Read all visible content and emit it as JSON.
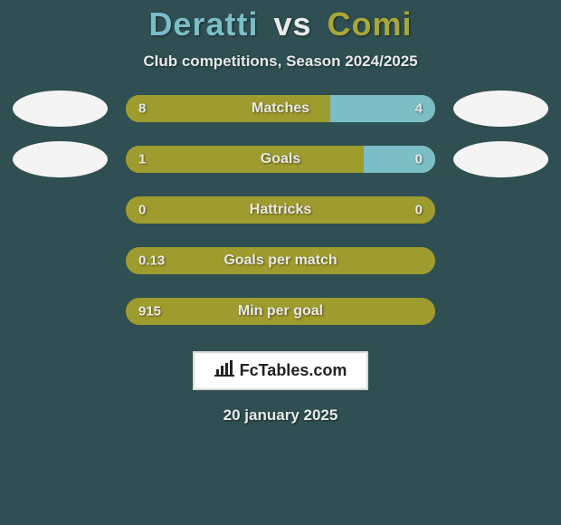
{
  "colors": {
    "background": "#2f4f52",
    "title_player1": "#7bbec5",
    "title_vs": "#e9e9e9",
    "title_player2": "#a8a83a",
    "subtitle": "#e9e9e9",
    "bar_left": "#9f9c2f",
    "bar_right": "#7bbec5",
    "bar_label": "#e9e9e9",
    "bar_val_left": "#e9e9e9",
    "bar_val_right": "#e9e9e9",
    "avatar_fill": "#f4f4f4",
    "brand_border": "#d9d9d9",
    "brand_bg": "#ffffff",
    "brand_text": "#222222",
    "brand_icon": "#222222",
    "date": "#e9e9e9"
  },
  "title": {
    "player1": "Deratti",
    "vs": "vs",
    "player2": "Comi"
  },
  "subtitle": "Club competitions, Season 2024/2025",
  "stats": [
    {
      "label": "Matches",
      "left_val": "8",
      "right_val": "4",
      "left_pct": 66,
      "right_pct": 34,
      "show_avatars": true
    },
    {
      "label": "Goals",
      "left_val": "1",
      "right_val": "0",
      "left_pct": 77,
      "right_pct": 23,
      "show_avatars": true
    },
    {
      "label": "Hattricks",
      "left_val": "0",
      "right_val": "0",
      "left_pct": 100,
      "right_pct": 0,
      "show_avatars": false
    },
    {
      "label": "Goals per match",
      "left_val": "0.13",
      "right_val": "",
      "left_pct": 100,
      "right_pct": 0,
      "show_avatars": false
    },
    {
      "label": "Min per goal",
      "left_val": "915",
      "right_val": "",
      "left_pct": 100,
      "right_pct": 0,
      "show_avatars": false
    }
  ],
  "brand": {
    "name": "FcTables.com",
    "icon": "chart-icon"
  },
  "date": "20 january 2025"
}
